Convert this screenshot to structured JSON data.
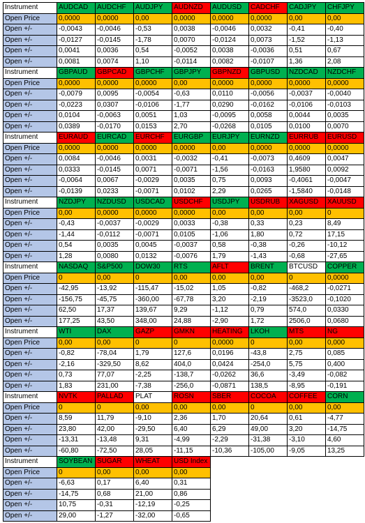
{
  "labels": {
    "header": "Instrument",
    "price": "Open Price",
    "change": "Open +/-"
  },
  "blocks": [
    {
      "instruments": [
        "AUDCAD",
        "AUDCHF",
        "AUDJPY",
        "AUDNZD",
        "AUDUSD",
        "CADCHF",
        "CADJPY",
        "CHFJPY"
      ],
      "colors": [
        "#00b050",
        "#00b050",
        "#00b050",
        "#ff0000",
        "#00b050",
        "#ff0000",
        "#00b050",
        "#00b050"
      ],
      "open_price": [
        "0,0000",
        "0,0000",
        "0,00",
        "0,0000",
        "0,0000",
        "0,0000",
        "0,00",
        "0,00"
      ],
      "changes": [
        [
          "-0,0043",
          "-0,0046",
          "-0,53",
          "0,0038",
          "-0,0046",
          "0,0032",
          "-0,41",
          "-0,40"
        ],
        [
          "-0,0127",
          "-0,0145",
          "-1,78",
          "0,0070",
          "-0,0124",
          "0,0073",
          "-1,52",
          "-1,13"
        ],
        [
          "0,0041",
          "0,0036",
          "0,54",
          "-0,0052",
          "0,0038",
          "-0,0036",
          "0,51",
          "0,67"
        ],
        [
          "0,0081",
          "0,0074",
          "1,10",
          "-0,0114",
          "0,0082",
          "-0,0107",
          "1,36",
          "2,08"
        ]
      ]
    },
    {
      "instruments": [
        "GBPAUD",
        "GBPCAD",
        "GBPCHF",
        "GBPJPY",
        "GBPNZD",
        "GBPUSD",
        "NZDCAD",
        "NZDCHF"
      ],
      "colors": [
        "#00b050",
        "#ff0000",
        "#00b050",
        "#00b050",
        "#ff0000",
        "#00b050",
        "#00b050",
        "#00b050"
      ],
      "open_price": [
        "0,0000",
        "0,0000",
        "0,0000",
        "0,00",
        "0,0000",
        "0,0000",
        "0,0000",
        "0,0000"
      ],
      "changes": [
        [
          "-0,0079",
          "0,0095",
          "-0,0054",
          "-0,63",
          "0,0110",
          "-0,0056",
          "-0,0037",
          "-0,0040"
        ],
        [
          "-0,0223",
          "0,0307",
          "-0,0106",
          "-1,77",
          "0,0290",
          "-0,0162",
          "-0,0106",
          "-0,0103"
        ],
        [
          "0,0104",
          "-0,0063",
          "0,0051",
          "1,03",
          "-0,0095",
          "0,0058",
          "0,0044",
          "0,0035"
        ],
        [
          "0,0389",
          "-0,0170",
          "0,0153",
          "2,70",
          "-0,0268",
          "0,0105",
          "0,0100",
          "0,0070"
        ]
      ]
    },
    {
      "instruments": [
        "EURAUD",
        "EURCAD",
        "EURCHF",
        "EURGBP",
        "EURJPY",
        "EURNZD",
        "EURRUB",
        "EURUSD"
      ],
      "colors": [
        "#ff0000",
        "#00b050",
        "#ff0000",
        "#00b050",
        "#00b050",
        "#00b050",
        "#ff0000",
        "#ff0000"
      ],
      "open_price": [
        "0,0000",
        "0,0000",
        "0,0000",
        "0,0000",
        "0,00",
        "0,0000",
        "0,0000",
        "0,0000"
      ],
      "changes": [
        [
          "0,0084",
          "-0,0046",
          "0,0031",
          "-0,0032",
          "-0,41",
          "-0,0073",
          "0,4609",
          "0,0047"
        ],
        [
          "0,0333",
          "-0,0145",
          "0,0071",
          "-0,0071",
          "-1,56",
          "-0,0163",
          "1,9580",
          "0,0092"
        ],
        [
          "-0,0064",
          "0,0067",
          "-0,0029",
          "0,0035",
          "0,75",
          "0,0093",
          "-0,4061",
          "-0,0047"
        ],
        [
          "-0,0139",
          "0,0233",
          "-0,0071",
          "0,0102",
          "2,29",
          "0,0265",
          "-1,5840",
          "-0,0148"
        ]
      ]
    },
    {
      "instruments": [
        "NZDJPY",
        "NZDUSD",
        "USDCAD",
        "USDCHF",
        "USDJPY",
        "USDRUB",
        "XAGUSD",
        "XAUUSD"
      ],
      "colors": [
        "#00b050",
        "#00b050",
        "#00b050",
        "#ff0000",
        "#00b050",
        "#ff0000",
        "#ff0000",
        "#ff0000"
      ],
      "open_price": [
        "0,00",
        "0,0000",
        "0,0000",
        "0,0000",
        "0,00",
        "0,00",
        "0,00",
        "0"
      ],
      "changes": [
        [
          "-0,43",
          "-0,0037",
          "-0,0029",
          "0,0033",
          "-0,38",
          "0,33",
          "0,23",
          "8,49"
        ],
        [
          "-1,44",
          "-0,0112",
          "-0,0071",
          "0,0105",
          "-1,06",
          "1,80",
          "0,72",
          "17,15"
        ],
        [
          "0,54",
          "0,0035",
          "0,0045",
          "-0,0037",
          "0,58",
          "-0,38",
          "-0,26",
          "-10,12"
        ],
        [
          "1,28",
          "0,0080",
          "0,0132",
          "-0,0076",
          "1,79",
          "-1,43",
          "-0,68",
          "-27,65"
        ]
      ]
    },
    {
      "instruments": [
        "NASDAQ",
        "S&P500",
        "DOW30",
        "RTS",
        "AFLT",
        "BRENT",
        "BTCUSD",
        "COPPER"
      ],
      "colors": [
        "#00b050",
        "#00b050",
        "#00b050",
        "#00b050",
        "#ff0000",
        "#00b050",
        "#ffffff",
        "#00b050"
      ],
      "open_price": [
        "0",
        "0,00",
        "0",
        "0,00",
        "0,00",
        "0,00",
        "0",
        "0,0000"
      ],
      "changes": [
        [
          "-42,95",
          "-13,92",
          "-115,47",
          "-15,02",
          "1,05",
          "-0,82",
          "-468,2",
          "-0,0271"
        ],
        [
          "-156,75",
          "-45,75",
          "-360,00",
          "-67,78",
          "3,20",
          "-2,19",
          "-3523,0",
          "-0,1020"
        ],
        [
          "62,50",
          "17,37",
          "139,67",
          "9,29",
          "-1,12",
          "0,79",
          "574,0",
          "0,0330"
        ],
        [
          "177,25",
          "43,50",
          "348,00",
          "24,88",
          "-2,90",
          "1,72",
          "2506,0",
          "0,0680"
        ]
      ]
    },
    {
      "instruments": [
        "WTI",
        "DAX",
        "GAZP",
        "GMKN",
        "HEATING",
        "LKOH",
        "MTS",
        "NG"
      ],
      "colors": [
        "#00b050",
        "#00b050",
        "#ff0000",
        "#ff0000",
        "#ff0000",
        "#00b050",
        "#ff0000",
        "#ff0000"
      ],
      "open_price": [
        "0,00",
        "0,00",
        "0",
        "0",
        "0,0000",
        "0",
        "0,00",
        "0,000"
      ],
      "changes": [
        [
          "-0,82",
          "-78,04",
          "1,79",
          "127,6",
          "0,0196",
          "-43,8",
          "2,75",
          "0,085"
        ],
        [
          "-2,16",
          "-329,50",
          "8,62",
          "404,0",
          "0,0424",
          "-254,0",
          "5,75",
          "0,400"
        ],
        [
          "0,73",
          "77,07",
          "-2,25",
          "-138,7",
          "-0,0262",
          "36,6",
          "-3,49",
          "-0,082"
        ],
        [
          "1,83",
          "231,00",
          "-7,38",
          "-256,0",
          "-0,0871",
          "138,5",
          "-8,95",
          "-0,191"
        ]
      ]
    },
    {
      "instruments": [
        "NVTK",
        "PALLAD",
        "PLAT",
        "ROSN",
        "SBER",
        "COCOA",
        "COFFEE",
        "CORN"
      ],
      "colors": [
        "#ff0000",
        "#ff0000",
        "#ffffff",
        "#ff0000",
        "#ff0000",
        "#ff0000",
        "#ff0000",
        "#00b050"
      ],
      "open_price": [
        "0",
        "0",
        "0,00",
        "0,00",
        "0,00",
        "0",
        "0,00",
        "0,00"
      ],
      "changes": [
        [
          "8,59",
          "11,79",
          "-9,10",
          "2,36",
          "1,70",
          "20,64",
          "0,61",
          "-4,77"
        ],
        [
          "23,80",
          "42,00",
          "-29,50",
          "6,40",
          "6,29",
          "49,00",
          "3,20",
          "-14,75"
        ],
        [
          "-13,31",
          "-13,48",
          "9,31",
          "-4,99",
          "-2,29",
          "-31,38",
          "-3,10",
          "4,60"
        ],
        [
          "-60,80",
          "-72,50",
          "28,05",
          "-11,15",
          "-10,36",
          "-105,00",
          "-9,05",
          "13,25"
        ]
      ]
    },
    {
      "instruments": [
        "SOYBEAN",
        "SUGAR",
        "WHEAT",
        "USD Index"
      ],
      "colors": [
        "#00b050",
        "#ff0000",
        "#ff0000",
        "#ff0000"
      ],
      "open_price": [
        "0",
        "0,00",
        "0,00",
        "0,00"
      ],
      "changes": [
        [
          "-6,63",
          "0,17",
          "6,40",
          "0,31"
        ],
        [
          "-14,75",
          "0,68",
          "21,00",
          "0,86"
        ],
        [
          "10,75",
          "-0,31",
          "-12,19",
          "-0,25"
        ],
        [
          "29,00",
          "-1,27",
          "-32,00",
          "-0,65"
        ]
      ]
    }
  ]
}
